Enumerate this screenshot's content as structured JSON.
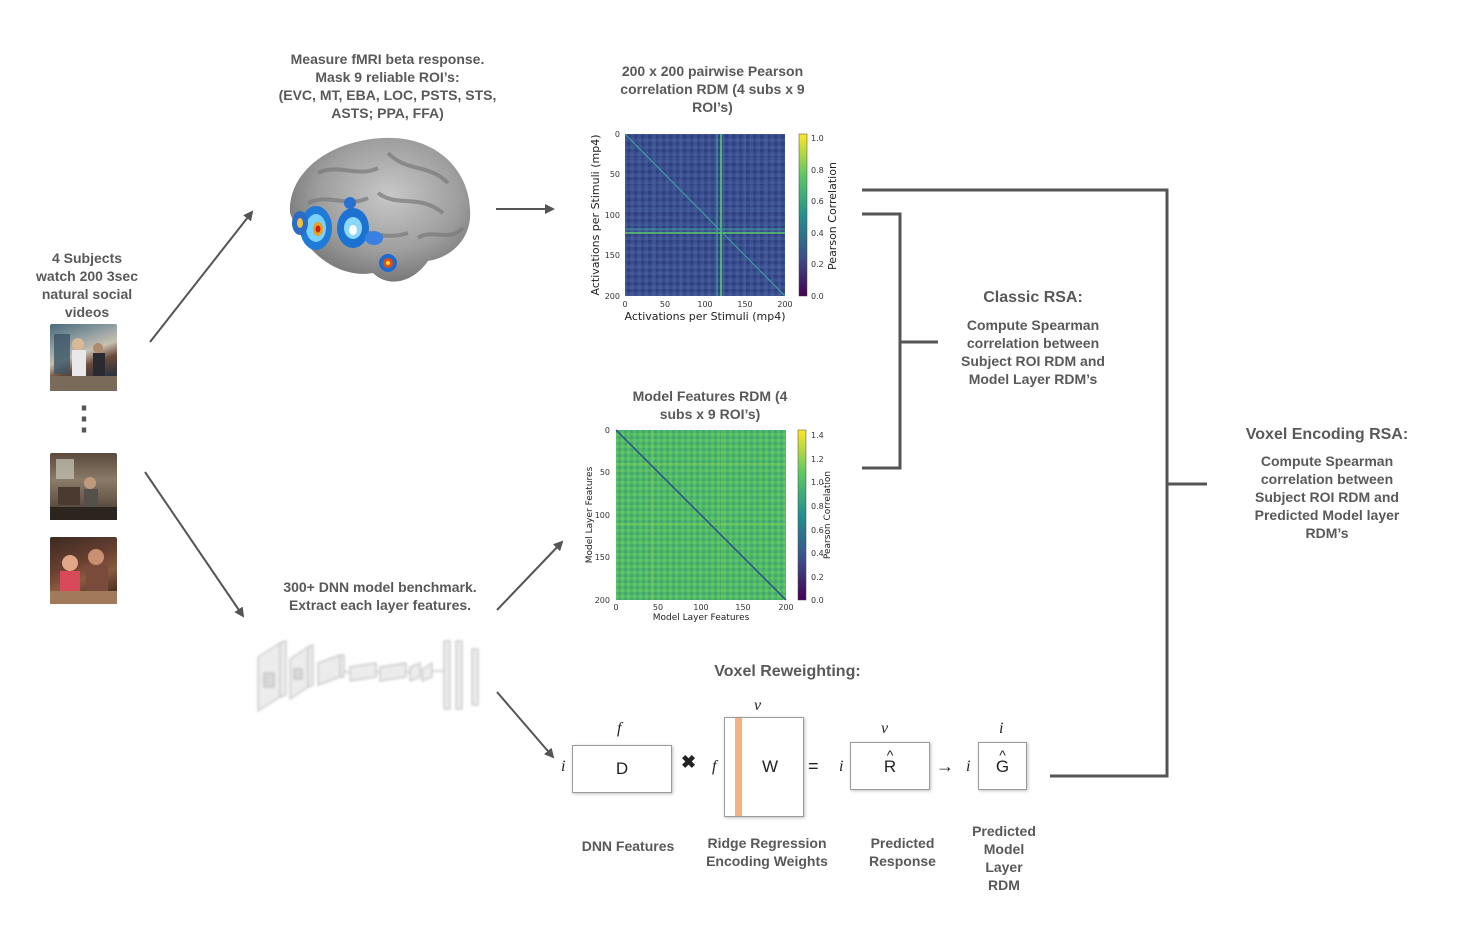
{
  "subjects": {
    "lines": [
      "4 Subjects",
      "watch 200 3sec",
      "natural social",
      "videos"
    ],
    "ellipsis": "⋮"
  },
  "fmri": {
    "lines": [
      "Measure fMRI beta response.",
      "Mask 9 reliable ROI’s:",
      "(EVC, MT, EBA, LOC, PSTS, STS,",
      "ASTS; PPA, FFA)"
    ]
  },
  "dnn": {
    "lines": [
      "300+ DNN model benchmark.",
      "Extract each layer features."
    ]
  },
  "roi_rdm": {
    "title": [
      "200 x 200 pairwise Pearson",
      "correlation RDM (4 subs x 9",
      "ROI’s)"
    ],
    "xlabel": "Activations per Stimuli (mp4)",
    "ylabel": "Activations per Stimuli (mp4)",
    "ticks": [
      "0",
      "50",
      "100",
      "150",
      "200"
    ],
    "colorbar_label": "Pearson Correlation",
    "colorbar_ticks": [
      "1.0",
      "0.8",
      "0.6",
      "0.4",
      "0.2",
      "0.0"
    ]
  },
  "model_rdm": {
    "title": [
      "Model Features RDM (4",
      "subs x 9 ROI’s)"
    ],
    "xlabel": "Model Layer Features",
    "ylabel": "Model Layer Features",
    "ticks": [
      "0",
      "50",
      "100",
      "150",
      "200"
    ],
    "colorbar_label": "Pearson Correlation",
    "colorbar_ticks": [
      "1.4",
      "1.2",
      "1.0",
      "0.8",
      "0.6",
      "0.4",
      "0.2",
      "0.0"
    ]
  },
  "classic_rsa": {
    "title": "Classic RSA:",
    "lines": [
      "Compute Spearman",
      "correlation between",
      "Subject ROI RDM and",
      "Model Layer RDM’s"
    ]
  },
  "voxel_rsa": {
    "title": "Voxel Encoding RSA:",
    "lines": [
      "Compute Spearman",
      "correlation between",
      "Subject ROI RDM and",
      "Predicted Model layer",
      "RDM’s"
    ]
  },
  "reweight": {
    "title": "Voxel Reweighting:",
    "d_label": "D",
    "w_label": "W",
    "r_label": "R",
    "g_label": "G",
    "hat": "^",
    "f_top": "f",
    "i_left": "i",
    "f_left": "f",
    "v_top": "v",
    "v_top2": "v",
    "i_left2": "i",
    "i_top": "i",
    "i_left3": "i",
    "times": "✖",
    "equals": "=",
    "arrow": "→",
    "captions": {
      "dnn_features": [
        "DNN Features"
      ],
      "ridge": [
        "Ridge Regression",
        "Encoding Weights"
      ],
      "predicted_response": [
        "Predicted",
        "Response"
      ],
      "predicted_rdm": [
        "Predicted",
        "Model",
        "Layer",
        "RDM"
      ]
    }
  }
}
